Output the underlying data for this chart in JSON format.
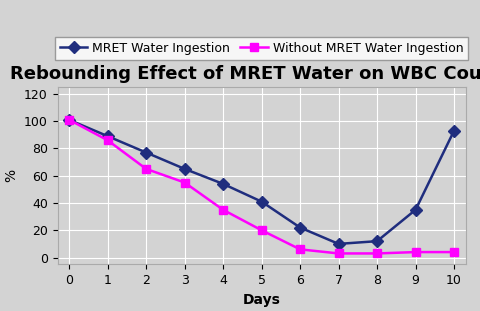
{
  "title": "Rebounding Effect of MRET Water on WBC Counts",
  "xlabel": "Days",
  "ylabel": "%",
  "days": [
    0,
    1,
    2,
    3,
    4,
    5,
    6,
    7,
    8,
    9,
    10
  ],
  "mret_values": [
    101,
    89,
    77,
    65,
    54,
    41,
    22,
    10,
    12,
    35,
    93
  ],
  "no_mret_values": [
    101,
    86,
    65,
    55,
    35,
    20,
    6,
    3,
    3,
    4,
    4
  ],
  "mret_color": "#1f2d7e",
  "no_mret_color": "#ff00ff",
  "mret_label": "MRET Water Ingestion",
  "no_mret_label": "Without MRET Water Ingestion",
  "ylim": [
    -5,
    125
  ],
  "xlim": [
    -0.3,
    10.3
  ],
  "yticks": [
    0,
    20,
    40,
    60,
    80,
    100,
    120
  ],
  "xticks": [
    0,
    1,
    2,
    3,
    4,
    5,
    6,
    7,
    8,
    9,
    10
  ],
  "background_color": "#d3d3d3",
  "fig_background": "#d3d3d3",
  "title_fontsize": 13,
  "axis_label_fontsize": 10,
  "tick_fontsize": 9,
  "legend_fontsize": 9,
  "linewidth": 1.8,
  "markersize": 6
}
